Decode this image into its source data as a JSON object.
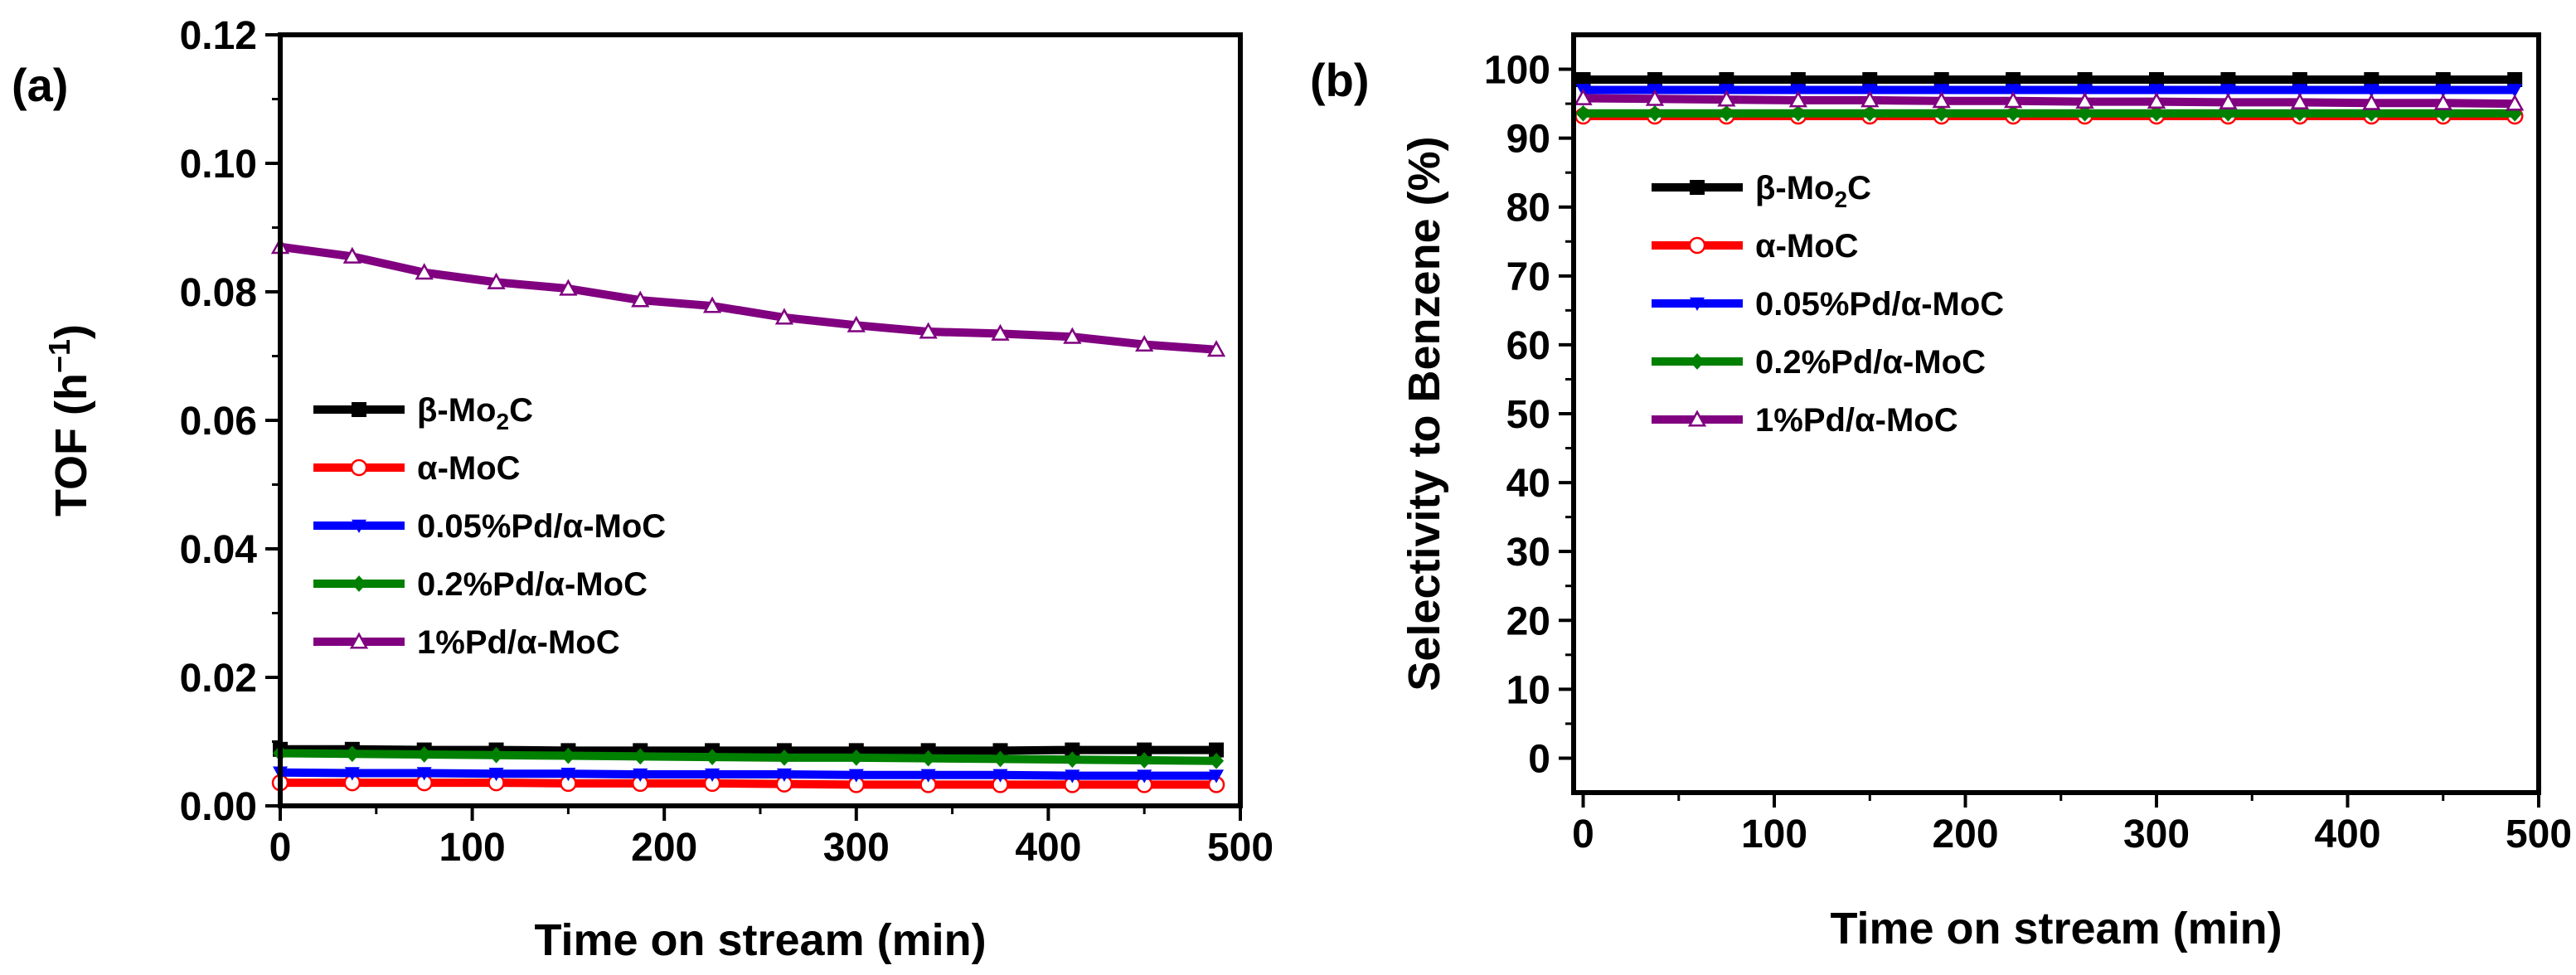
{
  "chart_data": [
    {
      "type": "line",
      "panel_label": "(a)",
      "xlabel": "Time on stream (min)",
      "ylabel_main": "TOF (h",
      "ylabel_sup": "−1",
      "ylabel_close": ")",
      "xlim": [
        0,
        500
      ],
      "ylim": [
        0,
        0.12
      ],
      "xticks": [
        0,
        100,
        200,
        300,
        400,
        500
      ],
      "xtick_labels": [
        "0",
        "100",
        "200",
        "300",
        "400",
        "500"
      ],
      "yticks": [
        0,
        0.02,
        0.04,
        0.06,
        0.08,
        0.1,
        0.12
      ],
      "ytick_labels": [
        "0.00",
        "0.02",
        "0.04",
        "0.06",
        "0.08",
        "0.10",
        "0.12"
      ],
      "x": [
        0,
        37.5,
        75,
        112.5,
        150,
        187.5,
        225,
        262.5,
        300,
        337.5,
        375,
        412.5,
        450,
        487.5
      ],
      "series": [
        {
          "name": "β-Mo2C",
          "label_main": "β-Mo",
          "label_sub": "2",
          "label_tail": "C",
          "color": "#000000",
          "marker": "square",
          "values": [
            0.0088,
            0.0088,
            0.0087,
            0.0087,
            0.0086,
            0.0086,
            0.0086,
            0.0086,
            0.0086,
            0.0086,
            0.0086,
            0.0087,
            0.0087,
            0.0087
          ]
        },
        {
          "name": "α-MoC",
          "label_main": "α-MoC",
          "label_sub": "",
          "label_tail": "",
          "color": "#ff0000",
          "marker": "circle-open",
          "values": [
            0.0036,
            0.0036,
            0.0036,
            0.0036,
            0.0035,
            0.0035,
            0.0035,
            0.0034,
            0.0033,
            0.0033,
            0.0033,
            0.0033,
            0.0033,
            0.0033
          ]
        },
        {
          "name": "0.05%Pd/α-MoC",
          "label_main": "0.05%Pd/α-MoC",
          "label_sub": "",
          "label_tail": "",
          "color": "#0000ff",
          "marker": "triangle-down",
          "values": [
            0.0052,
            0.0051,
            0.0051,
            0.005,
            0.005,
            0.0049,
            0.0049,
            0.0049,
            0.0048,
            0.0048,
            0.0048,
            0.0047,
            0.0047,
            0.0047
          ]
        },
        {
          "name": "0.2%Pd/α-MoC",
          "label_main": "0.2%Pd/α-MoC",
          "label_sub": "",
          "label_tail": "",
          "color": "#008000",
          "marker": "diamond",
          "values": [
            0.0082,
            0.0081,
            0.008,
            0.0079,
            0.0078,
            0.0077,
            0.0076,
            0.0075,
            0.0075,
            0.0074,
            0.0073,
            0.0072,
            0.0071,
            0.007
          ]
        },
        {
          "name": "1%Pd/α-MoC",
          "label_main": "1%Pd/α-MoC",
          "label_sub": "",
          "label_tail": "",
          "color": "#800080",
          "marker": "triangle-open",
          "values": [
            0.087,
            0.0855,
            0.083,
            0.0815,
            0.0805,
            0.0787,
            0.0778,
            0.076,
            0.0748,
            0.0738,
            0.0735,
            0.073,
            0.0718,
            0.071
          ]
        }
      ]
    },
    {
      "type": "line",
      "panel_label": "(b)",
      "xlabel": "Time on stream (min)",
      "ylabel_main": "Selectivity to Benzene (%)",
      "ylabel_sup": "",
      "ylabel_close": "",
      "xlim": [
        -5,
        500
      ],
      "ylim": [
        -5,
        105
      ],
      "xticks": [
        0,
        100,
        200,
        300,
        400,
        500
      ],
      "xtick_labels": [
        "0",
        "100",
        "200",
        "300",
        "400",
        "500"
      ],
      "yticks": [
        0,
        10,
        20,
        30,
        40,
        50,
        60,
        70,
        80,
        90,
        100
      ],
      "ytick_labels": [
        "0",
        "10",
        "20",
        "30",
        "40",
        "50",
        "60",
        "70",
        "80",
        "90",
        "100"
      ],
      "x": [
        0,
        37.5,
        75,
        112.5,
        150,
        187.5,
        225,
        262.5,
        300,
        337.5,
        375,
        412.5,
        450,
        487.5
      ],
      "series": [
        {
          "name": "β-Mo2C",
          "label_main": "β-Mo",
          "label_sub": "2",
          "label_tail": "C",
          "color": "#000000",
          "marker": "square",
          "values": [
            98.5,
            98.5,
            98.5,
            98.5,
            98.5,
            98.5,
            98.5,
            98.5,
            98.5,
            98.5,
            98.5,
            98.5,
            98.5,
            98.5
          ]
        },
        {
          "name": "α-MoC",
          "label_main": "α-MoC",
          "label_sub": "",
          "label_tail": "",
          "color": "#ff0000",
          "marker": "circle-open",
          "values": [
            93.2,
            93.2,
            93.2,
            93.2,
            93.2,
            93.2,
            93.2,
            93.2,
            93.2,
            93.2,
            93.2,
            93.2,
            93.2,
            93.2
          ]
        },
        {
          "name": "0.05%Pd/α-MoC",
          "label_main": "0.05%Pd/α-MoC",
          "label_sub": "",
          "label_tail": "",
          "color": "#0000ff",
          "marker": "triangle-down",
          "values": [
            97.0,
            97.0,
            97.0,
            97.0,
            97.0,
            97.0,
            97.0,
            97.0,
            97.0,
            97.0,
            97.0,
            97.0,
            97.0,
            97.0
          ]
        },
        {
          "name": "0.2%Pd/α-MoC",
          "label_main": "0.2%Pd/α-MoC",
          "label_sub": "",
          "label_tail": "",
          "color": "#008000",
          "marker": "diamond",
          "values": [
            93.6,
            93.6,
            93.6,
            93.6,
            93.6,
            93.6,
            93.6,
            93.6,
            93.6,
            93.6,
            93.6,
            93.6,
            93.6,
            93.6
          ]
        },
        {
          "name": "1%Pd/α-MoC",
          "label_main": "1%Pd/α-MoC",
          "label_sub": "",
          "label_tail": "",
          "color": "#800080",
          "marker": "triangle-open",
          "values": [
            95.8,
            95.7,
            95.6,
            95.5,
            95.5,
            95.4,
            95.4,
            95.3,
            95.3,
            95.2,
            95.2,
            95.1,
            95.1,
            95.0
          ]
        }
      ]
    }
  ]
}
